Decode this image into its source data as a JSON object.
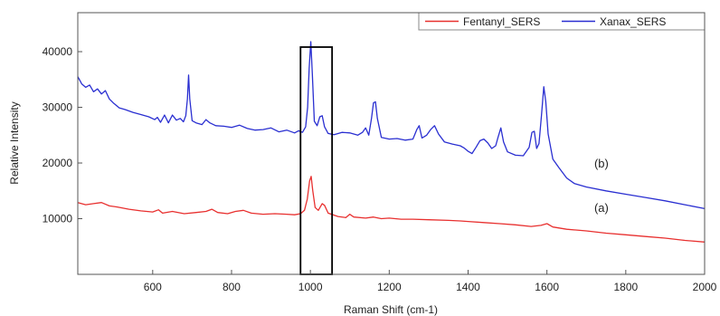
{
  "chart_data": {
    "type": "line",
    "title": "",
    "xlabel": "Raman Shift (cm-1)",
    "ylabel": "Relative Intensity",
    "xlim": [
      410,
      2000
    ],
    "ylim": [
      0,
      47000
    ],
    "x_ticks": [
      600,
      800,
      1000,
      1200,
      1400,
      1600,
      1800,
      2000
    ],
    "y_ticks": [
      10000,
      20000,
      30000,
      40000
    ],
    "grid": false,
    "legend_position": "top-right",
    "series": [
      {
        "name": "Fentanyl_SERS",
        "color": "#e8302f",
        "points": [
          [
            410,
            12900
          ],
          [
            430,
            12500
          ],
          [
            450,
            12700
          ],
          [
            470,
            12900
          ],
          [
            490,
            12300
          ],
          [
            510,
            12100
          ],
          [
            540,
            11700
          ],
          [
            570,
            11400
          ],
          [
            600,
            11200
          ],
          [
            615,
            11600
          ],
          [
            625,
            11000
          ],
          [
            650,
            11300
          ],
          [
            680,
            10900
          ],
          [
            710,
            11100
          ],
          [
            735,
            11300
          ],
          [
            750,
            11700
          ],
          [
            765,
            11100
          ],
          [
            790,
            10900
          ],
          [
            810,
            11300
          ],
          [
            830,
            11500
          ],
          [
            850,
            11000
          ],
          [
            880,
            10800
          ],
          [
            910,
            10900
          ],
          [
            940,
            10800
          ],
          [
            960,
            10700
          ],
          [
            975,
            10900
          ],
          [
            985,
            11500
          ],
          [
            992,
            13500
          ],
          [
            998,
            16800
          ],
          [
            1002,
            17600
          ],
          [
            1006,
            15000
          ],
          [
            1012,
            12000
          ],
          [
            1020,
            11500
          ],
          [
            1030,
            12700
          ],
          [
            1036,
            12400
          ],
          [
            1045,
            11000
          ],
          [
            1070,
            10400
          ],
          [
            1090,
            10200
          ],
          [
            1100,
            10800
          ],
          [
            1110,
            10300
          ],
          [
            1140,
            10100
          ],
          [
            1160,
            10300
          ],
          [
            1180,
            10000
          ],
          [
            1200,
            10100
          ],
          [
            1230,
            9900
          ],
          [
            1260,
            9900
          ],
          [
            1300,
            9800
          ],
          [
            1350,
            9700
          ],
          [
            1380,
            9600
          ],
          [
            1400,
            9500
          ],
          [
            1440,
            9300
          ],
          [
            1480,
            9100
          ],
          [
            1520,
            8900
          ],
          [
            1560,
            8600
          ],
          [
            1585,
            8800
          ],
          [
            1600,
            9100
          ],
          [
            1615,
            8500
          ],
          [
            1650,
            8100
          ],
          [
            1700,
            7800
          ],
          [
            1750,
            7400
          ],
          [
            1800,
            7100
          ],
          [
            1850,
            6800
          ],
          [
            1900,
            6500
          ],
          [
            1950,
            6100
          ],
          [
            2000,
            5800
          ]
        ]
      },
      {
        "name": "Xanax_SERS",
        "color": "#2a2fd1",
        "points": [
          [
            410,
            35500
          ],
          [
            420,
            34200
          ],
          [
            430,
            33600
          ],
          [
            440,
            34000
          ],
          [
            450,
            32800
          ],
          [
            460,
            33300
          ],
          [
            470,
            32400
          ],
          [
            480,
            33000
          ],
          [
            490,
            31500
          ],
          [
            500,
            30800
          ],
          [
            515,
            29900
          ],
          [
            530,
            29600
          ],
          [
            550,
            29100
          ],
          [
            570,
            28700
          ],
          [
            590,
            28300
          ],
          [
            605,
            27800
          ],
          [
            612,
            28200
          ],
          [
            620,
            27300
          ],
          [
            630,
            28600
          ],
          [
            640,
            27200
          ],
          [
            650,
            28600
          ],
          [
            660,
            27700
          ],
          [
            670,
            28000
          ],
          [
            678,
            27400
          ],
          [
            684,
            28500
          ],
          [
            688,
            31500
          ],
          [
            691,
            35800
          ],
          [
            694,
            31500
          ],
          [
            700,
            27600
          ],
          [
            710,
            27200
          ],
          [
            725,
            26900
          ],
          [
            735,
            27800
          ],
          [
            745,
            27200
          ],
          [
            760,
            26700
          ],
          [
            780,
            26600
          ],
          [
            800,
            26400
          ],
          [
            820,
            26800
          ],
          [
            840,
            26200
          ],
          [
            860,
            25900
          ],
          [
            880,
            26000
          ],
          [
            900,
            26300
          ],
          [
            920,
            25600
          ],
          [
            940,
            25900
          ],
          [
            960,
            25400
          ],
          [
            970,
            25800
          ],
          [
            980,
            25500
          ],
          [
            988,
            26500
          ],
          [
            993,
            30000
          ],
          [
            997,
            37000
          ],
          [
            1001,
            41800
          ],
          [
            1005,
            36000
          ],
          [
            1010,
            27500
          ],
          [
            1017,
            26700
          ],
          [
            1024,
            28300
          ],
          [
            1030,
            28500
          ],
          [
            1036,
            26500
          ],
          [
            1045,
            25300
          ],
          [
            1060,
            25100
          ],
          [
            1080,
            25500
          ],
          [
            1100,
            25400
          ],
          [
            1120,
            25000
          ],
          [
            1132,
            25500
          ],
          [
            1140,
            26300
          ],
          [
            1148,
            25000
          ],
          [
            1155,
            28000
          ],
          [
            1160,
            30800
          ],
          [
            1165,
            31000
          ],
          [
            1170,
            28000
          ],
          [
            1180,
            24600
          ],
          [
            1200,
            24300
          ],
          [
            1220,
            24400
          ],
          [
            1240,
            24100
          ],
          [
            1260,
            24300
          ],
          [
            1270,
            26000
          ],
          [
            1276,
            26700
          ],
          [
            1283,
            24500
          ],
          [
            1295,
            25000
          ],
          [
            1305,
            26000
          ],
          [
            1315,
            26700
          ],
          [
            1325,
            25200
          ],
          [
            1340,
            23800
          ],
          [
            1360,
            23400
          ],
          [
            1380,
            23100
          ],
          [
            1390,
            22700
          ],
          [
            1400,
            22100
          ],
          [
            1410,
            21700
          ],
          [
            1420,
            22800
          ],
          [
            1430,
            24000
          ],
          [
            1440,
            24300
          ],
          [
            1450,
            23600
          ],
          [
            1460,
            22600
          ],
          [
            1470,
            23100
          ],
          [
            1476,
            24600
          ],
          [
            1483,
            26300
          ],
          [
            1490,
            23800
          ],
          [
            1500,
            22000
          ],
          [
            1520,
            21400
          ],
          [
            1540,
            21300
          ],
          [
            1555,
            22800
          ],
          [
            1562,
            25500
          ],
          [
            1568,
            25700
          ],
          [
            1574,
            22600
          ],
          [
            1580,
            23500
          ],
          [
            1586,
            28500
          ],
          [
            1592,
            33700
          ],
          [
            1597,
            31000
          ],
          [
            1603,
            25200
          ],
          [
            1615,
            20700
          ],
          [
            1630,
            19200
          ],
          [
            1650,
            17300
          ],
          [
            1670,
            16300
          ],
          [
            1700,
            15700
          ],
          [
            1750,
            15000
          ],
          [
            1800,
            14400
          ],
          [
            1850,
            13800
          ],
          [
            1900,
            13200
          ],
          [
            1950,
            12500
          ],
          [
            2000,
            11800
          ]
        ]
      }
    ],
    "annotations": [
      {
        "text": "(b)",
        "x": 1720,
        "y": 20000
      },
      {
        "text": "(a)",
        "x": 1720,
        "y": 12000
      }
    ],
    "highlight_box": {
      "x_range": [
        975,
        1055
      ],
      "y_range": [
        0,
        47000
      ]
    }
  }
}
